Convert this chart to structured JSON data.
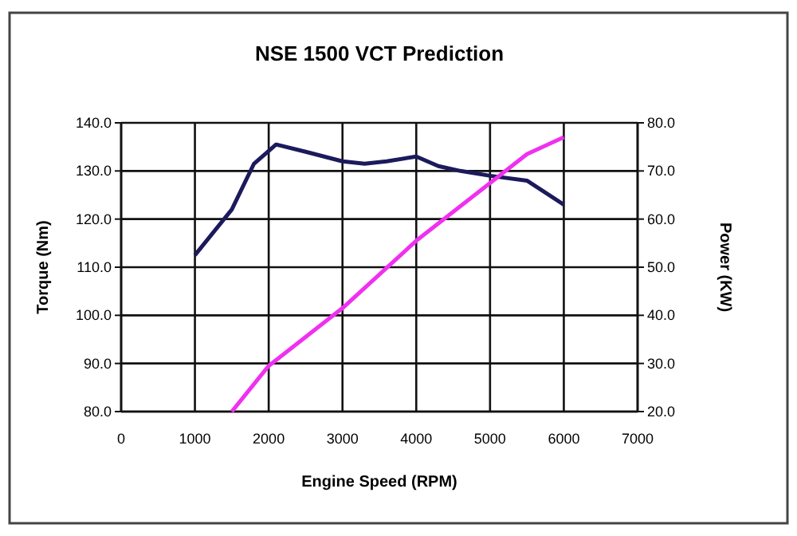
{
  "chart_data": {
    "type": "line",
    "title": "NSE 1500 VCT Prediction",
    "xlabel": "Engine Speed (RPM)",
    "ylabel": "Torque (Nm)",
    "y2label": "Power (KW)",
    "series": [
      {
        "color": "#1c1a5c",
        "x": [
          1000,
          1500,
          1800,
          2100,
          2500,
          3000,
          3300,
          3600,
          4000,
          4300,
          4600,
          5000,
          5500,
          6000
        ],
        "values": [
          112.5,
          122,
          131.5,
          135.5,
          134,
          132,
          131.5,
          132,
          133,
          131,
          130,
          129,
          128,
          123
        ]
      },
      {
        "color": "#f030f0",
        "axis": "y2",
        "x": [
          1500,
          2000,
          3000,
          4000,
          5000,
          5500,
          6000
        ],
        "values": [
          20,
          29.5,
          41.5,
          55.5,
          67.5,
          73.5,
          77
        ]
      }
    ],
    "xlim": [
      0,
      7000
    ],
    "xticks": [
      0,
      1000,
      2000,
      3000,
      4000,
      5000,
      6000,
      7000
    ],
    "ylim": [
      80,
      140
    ],
    "yticks": [
      {
        "value": 80,
        "label": "80.0"
      },
      {
        "value": 90,
        "label": "90.0"
      },
      {
        "value": 100,
        "label": "100.0"
      },
      {
        "value": 110,
        "label": "110.0"
      },
      {
        "value": 120,
        "label": "120.0"
      },
      {
        "value": 130,
        "label": "130.0"
      },
      {
        "value": 140,
        "label": "140.0"
      }
    ],
    "y2lim": [
      20,
      80
    ],
    "y2ticks": [
      {
        "value": 20,
        "label": "20.0"
      },
      {
        "value": 30,
        "label": "30.0"
      },
      {
        "value": 40,
        "label": "40.0"
      },
      {
        "value": 50,
        "label": "50.0"
      },
      {
        "value": 60,
        "label": "60.0"
      },
      {
        "value": 70,
        "label": "70.0"
      },
      {
        "value": 80,
        "label": "80.0"
      }
    ],
    "grid": true,
    "marker": "none",
    "line_style": "solid"
  }
}
